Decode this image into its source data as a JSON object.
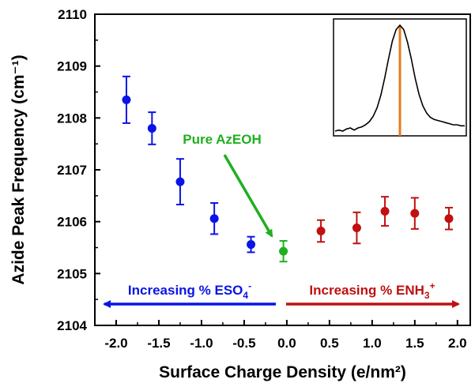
{
  "chart_data": {
    "type": "scatter",
    "xlabel": "Surface Charge Density (e/nm²)",
    "ylabel": "Azide Peak Frequency (cm⁻¹)",
    "xlim": [
      -2.25,
      2.15
    ],
    "ylim": [
      2104,
      2110
    ],
    "x_ticks": [
      -2.0,
      -1.5,
      -1.0,
      -0.5,
      0.0,
      0.5,
      1.0,
      1.5,
      2.0
    ],
    "x_tick_labels": [
      "-2.0",
      "-1.5",
      "-1.0",
      "-0.5",
      "0.0",
      "0.5",
      "1.0",
      "1.5",
      "2.0"
    ],
    "y_ticks": [
      2104,
      2105,
      2106,
      2107,
      2108,
      2109,
      2110
    ],
    "y_tick_labels": [
      "2104",
      "2105",
      "2106",
      "2107",
      "2108",
      "2109",
      "2110"
    ],
    "grid": false,
    "series": [
      {
        "color": "#0a14e6",
        "points": [
          {
            "x": -1.88,
            "y": 2108.35,
            "err": 0.45
          },
          {
            "x": -1.58,
            "y": 2107.8,
            "err": 0.31
          },
          {
            "x": -1.25,
            "y": 2106.77,
            "err": 0.44
          },
          {
            "x": -0.85,
            "y": 2106.06,
            "err": 0.3
          },
          {
            "x": -0.42,
            "y": 2105.56,
            "err": 0.15
          }
        ]
      },
      {
        "color": "#1fb01f",
        "points": [
          {
            "x": -0.04,
            "y": 2105.43,
            "err": 0.2
          }
        ]
      },
      {
        "color": "#c01010",
        "points": [
          {
            "x": 0.4,
            "y": 2105.82,
            "err": 0.21
          },
          {
            "x": 0.82,
            "y": 2105.88,
            "err": 0.3
          },
          {
            "x": 1.15,
            "y": 2106.2,
            "err": 0.28
          },
          {
            "x": 1.5,
            "y": 2106.16,
            "err": 0.3
          },
          {
            "x": 1.9,
            "y": 2106.06,
            "err": 0.21
          }
        ]
      }
    ],
    "annotations": {
      "pure": {
        "text": "Pure AzEOH",
        "color": "#1fb01f"
      },
      "left_arrow": {
        "prefix": "Increasing % ESO",
        "sub": "4",
        "sup": "-",
        "color": "#0a14e6"
      },
      "right_arrow": {
        "prefix": "Increasing % ENH",
        "sub": "3",
        "sup": "+",
        "color": "#c01010"
      }
    },
    "inset": {
      "type": "line",
      "curve": [
        0.0,
        0.01,
        0.0,
        0.02,
        0.03,
        0.01,
        0.03,
        0.04,
        0.06,
        0.09,
        0.14,
        0.22,
        0.34,
        0.5,
        0.68,
        0.85,
        0.96,
        1.0,
        0.96,
        0.84,
        0.68,
        0.5,
        0.35,
        0.24,
        0.17,
        0.13,
        0.11,
        0.1,
        0.09,
        0.08,
        0.07,
        0.06,
        0.06,
        0.05,
        0.05
      ],
      "peak_index": 17,
      "line_color": "#000000",
      "marker_color": "#e87a1e"
    }
  }
}
